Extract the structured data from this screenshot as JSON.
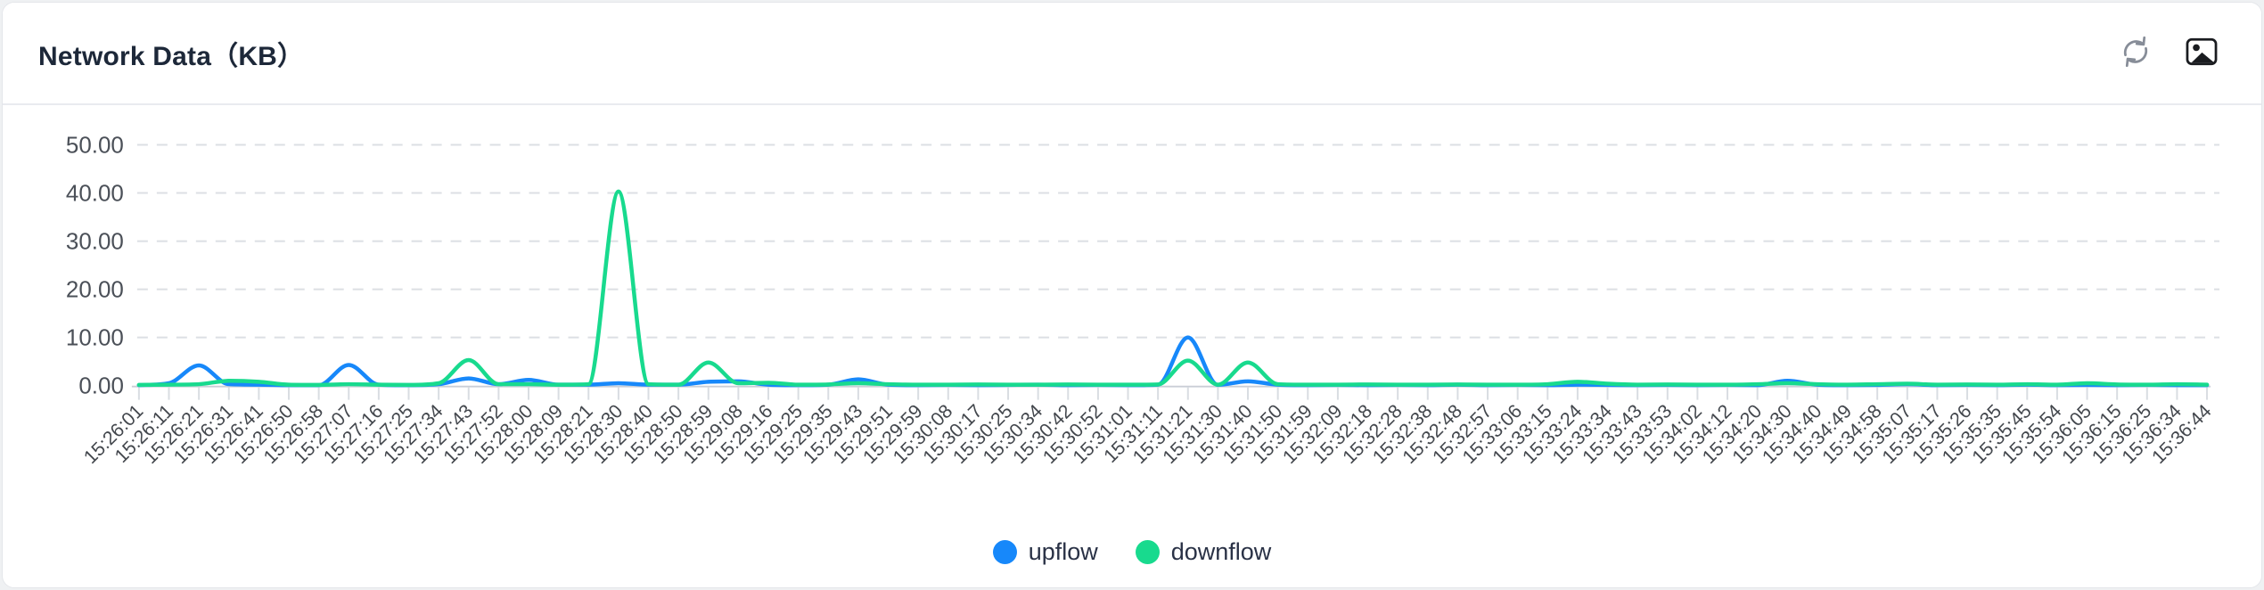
{
  "card": {
    "title": "Network Data（KB）"
  },
  "toolbar": {
    "refresh_icon": "refresh-icon",
    "save_image_icon": "save-as-image-icon"
  },
  "colors": {
    "upflow": "#1788fa",
    "downflow": "#18da8e",
    "grid": "#dcdfe4",
    "axis_line": "#c9ced6",
    "tick": "#d9dde2",
    "y_label": "#4b5058",
    "x_label": "#43474d"
  },
  "legend": {
    "items": [
      {
        "label": "upflow",
        "color": "#1788fa"
      },
      {
        "label": "downflow",
        "color": "#18da8e"
      }
    ]
  },
  "chart_data": {
    "type": "line",
    "title": "Network Data (KB)",
    "smooth": true,
    "grid": "horizontal dashed",
    "legend_position": "bottom",
    "x_label_rotation": 45,
    "ylim": [
      0,
      50
    ],
    "yticks": [
      0,
      10,
      20,
      30,
      40,
      50
    ],
    "ytick_labels": [
      "0.00",
      "10.00",
      "20.00",
      "30.00",
      "40.00",
      "50.00"
    ],
    "x": [
      "15:26:01",
      "15:26:11",
      "15:26:21",
      "15:26:31",
      "15:26:41",
      "15:26:50",
      "15:26:58",
      "15:27:07",
      "15:27:16",
      "15:27:25",
      "15:27:34",
      "15:27:43",
      "15:27:52",
      "15:28:00",
      "15:28:09",
      "15:28:21",
      "15:28:30",
      "15:28:40",
      "15:28:50",
      "15:28:59",
      "15:29:08",
      "15:29:16",
      "15:29:25",
      "15:29:35",
      "15:29:43",
      "15:29:51",
      "15:29:59",
      "15:30:08",
      "15:30:17",
      "15:30:25",
      "15:30:34",
      "15:30:42",
      "15:30:52",
      "15:31:01",
      "15:31:11",
      "15:31:21",
      "15:31:30",
      "15:31:40",
      "15:31:50",
      "15:31:59",
      "15:32:09",
      "15:32:18",
      "15:32:28",
      "15:32:38",
      "15:32:48",
      "15:32:57",
      "15:33:06",
      "15:33:15",
      "15:33:24",
      "15:33:34",
      "15:33:43",
      "15:33:53",
      "15:34:02",
      "15:34:12",
      "15:34:20",
      "15:34:30",
      "15:34:40",
      "15:34:49",
      "15:34:58",
      "15:35:07",
      "15:35:17",
      "15:35:26",
      "15:35:35",
      "15:35:45",
      "15:35:54",
      "15:36:05",
      "15:36:15",
      "15:36:25",
      "15:36:34",
      "15:36:44"
    ],
    "series": [
      {
        "name": "upflow",
        "color": "#1788fa",
        "values": [
          0.1,
          0.5,
          4.2,
          0.3,
          0.2,
          0.1,
          0.1,
          4.3,
          0.2,
          0.1,
          0.3,
          1.5,
          0.3,
          1.2,
          0.2,
          0.2,
          0.5,
          0.2,
          0.2,
          0.8,
          0.9,
          0.2,
          0.1,
          0.2,
          1.3,
          0.2,
          0.1,
          0.15,
          0.1,
          0.15,
          0.2,
          0.1,
          0.15,
          0.1,
          0.2,
          10,
          0.15,
          0.9,
          0.2,
          0.1,
          0.15,
          0.1,
          0.15,
          0.1,
          0.2,
          0.1,
          0.15,
          0.1,
          0.2,
          0.15,
          0.1,
          0.15,
          0.1,
          0.15,
          0.1,
          1.0,
          0.2,
          0.1,
          0.15,
          0.3,
          0.1,
          0.15,
          0.1,
          0.2,
          0.1,
          0.15,
          0.1,
          0.15,
          0.1,
          0.1
        ]
      },
      {
        "name": "downflow",
        "color": "#18da8e",
        "values": [
          0.15,
          0.2,
          0.3,
          1.0,
          0.8,
          0.2,
          0.15,
          0.3,
          0.2,
          0.15,
          0.5,
          5.3,
          0.3,
          0.3,
          0.2,
          0.3,
          40.3,
          0.3,
          0.2,
          4.8,
          0.5,
          0.6,
          0.2,
          0.25,
          0.5,
          0.3,
          0.2,
          0.2,
          0.25,
          0.2,
          0.2,
          0.25,
          0.2,
          0.2,
          0.25,
          5.2,
          0.2,
          4.8,
          0.3,
          0.2,
          0.2,
          0.25,
          0.2,
          0.2,
          0.25,
          0.2,
          0.2,
          0.3,
          0.8,
          0.4,
          0.2,
          0.25,
          0.2,
          0.2,
          0.3,
          0.5,
          0.3,
          0.2,
          0.3,
          0.4,
          0.2,
          0.25,
          0.2,
          0.3,
          0.2,
          0.5,
          0.25,
          0.2,
          0.3,
          0.2
        ]
      }
    ]
  }
}
